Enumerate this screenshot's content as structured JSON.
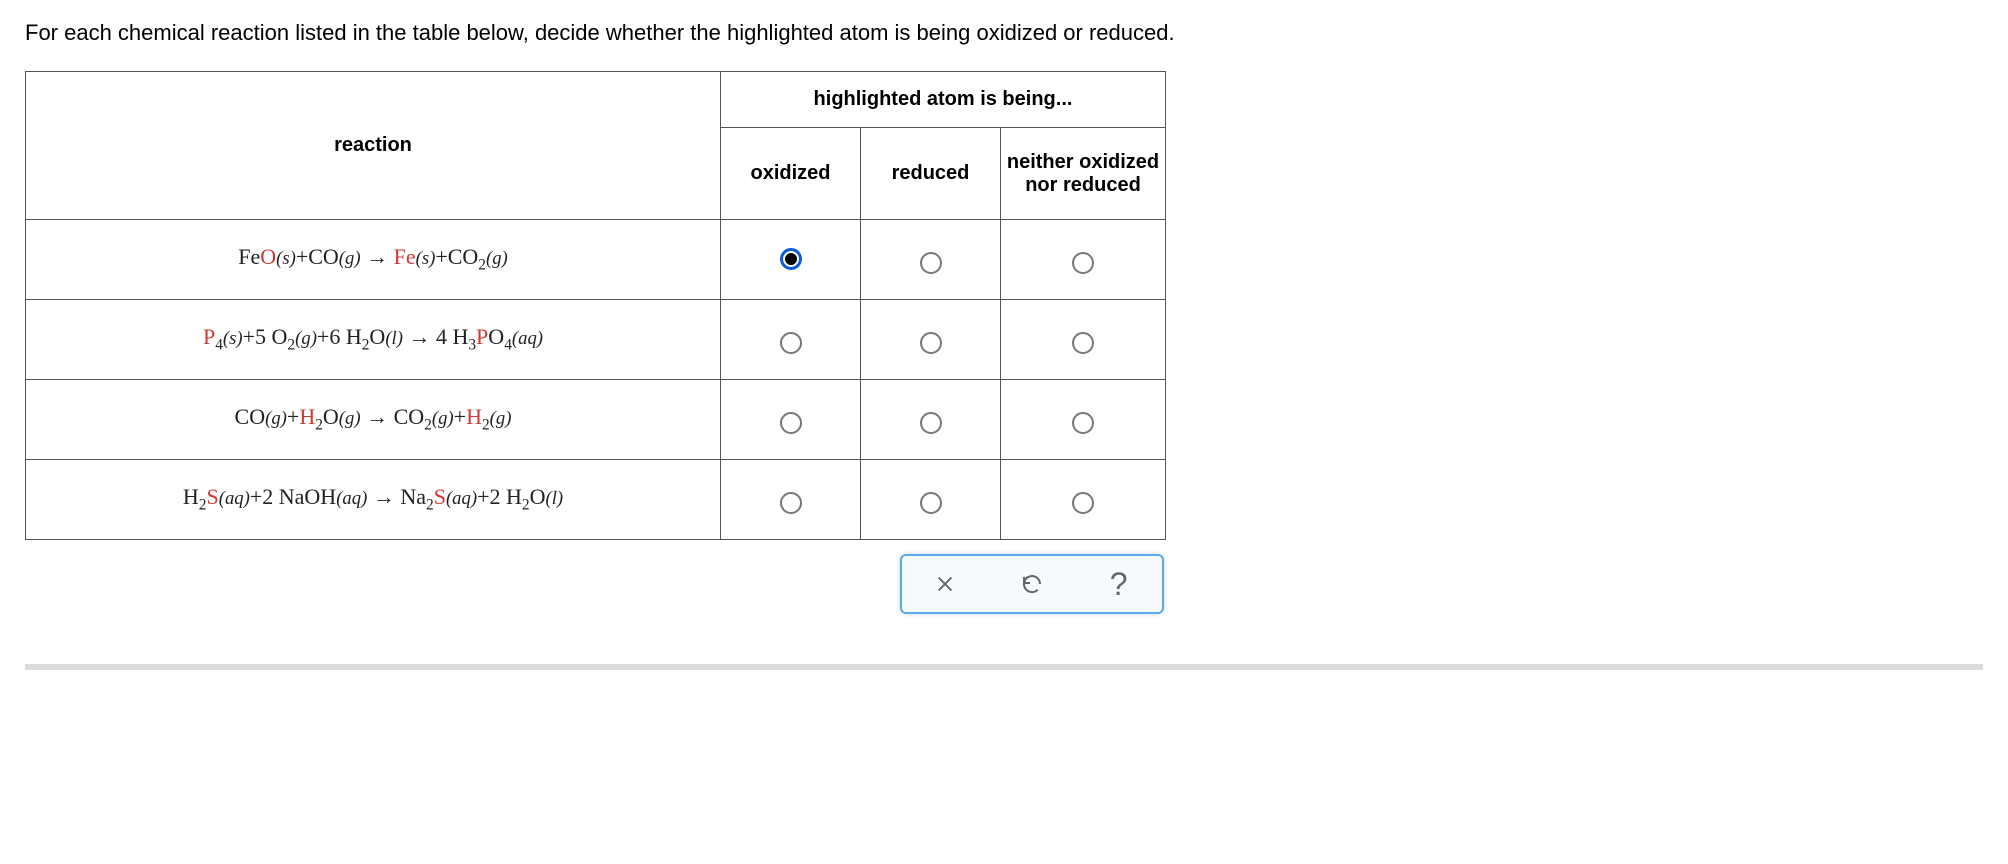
{
  "question": "For each chemical reaction listed in the table below, decide whether the highlighted atom is being oxidized or reduced.",
  "headers": {
    "reaction": "reaction",
    "group": "highlighted atom is being...",
    "oxidized": "oxidized",
    "reduced": "reduced",
    "neither": "neither oxidized nor reduced"
  },
  "rows": [
    {
      "reaction_html": "Fe<span class='hl'>O</span><span class='phase'>(s)</span>+CO<span class='phase'>(g)</span> → <span class='hl'>Fe</span><span class='phase'>(s)</span>+CO<sub>2</sub><span class='phase'>(g)</span>",
      "selected": "oxidized"
    },
    {
      "reaction_html": "<span class='hl'>P</span><sub>4</sub><span class='phase'>(s)</span>+5 O<sub>2</sub><span class='phase'>(g)</span>+6 H<sub>2</sub>O<span class='phase'>(l)</span> → 4 H<sub>3</sub><span class='hl'>P</span>O<sub>4</sub><span class='phase'>(aq)</span>",
      "selected": null
    },
    {
      "reaction_html": "CO<span class='phase'>(g)</span>+<span class='hl'>H</span><sub>2</sub>O<span class='phase'>(g)</span> → CO<sub>2</sub><span class='phase'>(g)</span>+<span class='hl'>H</span><sub>2</sub><span class='phase'>(g)</span>",
      "selected": null
    },
    {
      "reaction_html": "H<sub>2</sub><span class='hl'>S</span><span class='phase'>(aq)</span>+2 NaOH<span class='phase'>(aq)</span> → Na<sub>2</sub><span class='hl'>S</span><span class='phase'>(aq)</span>+2 H<sub>2</sub>O<span class='phase'>(l)</span>",
      "selected": null
    }
  ],
  "colors": {
    "highlight": "#cf3a32",
    "radio_selected_border": "#0a5cd6",
    "footer_border": "#62a9e8",
    "footer_bg": "#f6fbff",
    "separator": "#dcdcdc"
  }
}
